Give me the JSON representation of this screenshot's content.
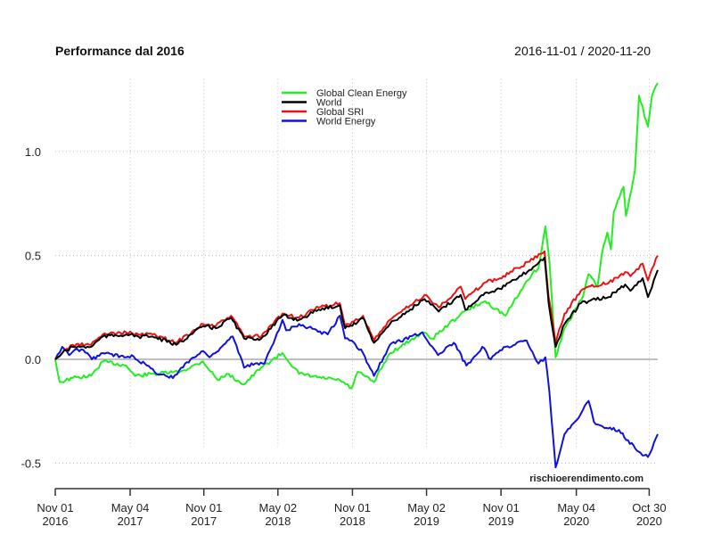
{
  "chart_data": {
    "type": "line",
    "title": "Performance dal 2016",
    "date_range": "2016-11-01 / 2020-11-20",
    "watermark": "rischioerendimento.com",
    "xlim": [
      "2016-11-01",
      "2020-11-20"
    ],
    "ylim": [
      -0.55,
      1.35
    ],
    "grid": true,
    "legend_position": "top-center",
    "y_ticks": [
      {
        "value": -0.5,
        "label": "-0.5"
      },
      {
        "value": 0.0,
        "label": "0.0"
      },
      {
        "value": 0.5,
        "label": "0.5"
      },
      {
        "value": 1.0,
        "label": "1.0"
      }
    ],
    "x_ticks": [
      {
        "date": "2016-11-01",
        "line1": "Nov 01",
        "line2": "2016"
      },
      {
        "date": "2017-05-04",
        "line1": "May 04",
        "line2": "2017"
      },
      {
        "date": "2017-11-01",
        "line1": "Nov 01",
        "line2": "2017"
      },
      {
        "date": "2018-05-02",
        "line1": "May 02",
        "line2": "2018"
      },
      {
        "date": "2018-11-01",
        "line1": "Nov 01",
        "line2": "2018"
      },
      {
        "date": "2019-05-02",
        "line1": "May 02",
        "line2": "2019"
      },
      {
        "date": "2019-11-01",
        "line1": "Nov 01",
        "line2": "2019"
      },
      {
        "date": "2020-05-04",
        "line1": "May 04",
        "line2": "2020"
      },
      {
        "date": "2020-10-30",
        "line1": "Oct 30",
        "line2": "2020"
      }
    ],
    "series": [
      {
        "name": "Global Clean Energy",
        "color": "#22ee22",
        "x": [
          "2016-11-01",
          "2016-11-12",
          "2016-12-14",
          "2017-01-28",
          "2017-02-26",
          "2017-04-24",
          "2017-05-16",
          "2017-06-28",
          "2017-09-04",
          "2017-10-30",
          "2017-12-05",
          "2017-12-27",
          "2018-02-08",
          "2018-03-22",
          "2018-05-13",
          "2018-06-23",
          "2018-08-17",
          "2018-10-01",
          "2018-10-30",
          "2018-11-14",
          "2018-12-24",
          "2019-02-01",
          "2019-03-23",
          "2019-04-22",
          "2019-05-16",
          "2019-06-26",
          "2019-08-03",
          "2019-09-23",
          "2019-11-12",
          "2019-12-19",
          "2020-01-16",
          "2020-02-01",
          "2020-02-18",
          "2020-02-28",
          "2020-03-14",
          "2020-04-05",
          "2020-05-20",
          "2020-06-03",
          "2020-06-25",
          "2020-07-05",
          "2020-07-19",
          "2020-07-28",
          "2020-08-04",
          "2020-08-28",
          "2020-09-03",
          "2020-09-25",
          "2020-10-05",
          "2020-10-27",
          "2020-11-06",
          "2020-11-20"
        ],
        "y": [
          0.0,
          -0.11,
          -0.09,
          -0.08,
          -0.01,
          -0.03,
          -0.08,
          -0.07,
          -0.06,
          -0.01,
          -0.1,
          -0.07,
          -0.12,
          -0.04,
          0.03,
          -0.07,
          -0.09,
          -0.1,
          -0.14,
          -0.06,
          -0.11,
          0.03,
          0.09,
          0.13,
          0.1,
          0.17,
          0.23,
          0.28,
          0.21,
          0.33,
          0.41,
          0.44,
          0.64,
          0.47,
          0.01,
          0.15,
          0.3,
          0.41,
          0.35,
          0.5,
          0.61,
          0.53,
          0.71,
          0.83,
          0.69,
          0.91,
          1.27,
          1.12,
          1.27,
          1.33
        ]
      },
      {
        "name": "World",
        "color": "#000000",
        "x": [
          "2016-11-01",
          "2016-11-18",
          "2016-12-14",
          "2017-01-28",
          "2017-02-26",
          "2017-04-24",
          "2017-05-24",
          "2017-06-28",
          "2017-08-25",
          "2017-10-30",
          "2017-11-30",
          "2018-01-07",
          "2018-02-08",
          "2018-03-22",
          "2018-05-13",
          "2018-06-23",
          "2018-08-10",
          "2018-10-01",
          "2018-10-14",
          "2018-11-14",
          "2018-11-27",
          "2018-12-24",
          "2019-02-01",
          "2019-03-23",
          "2019-04-27",
          "2019-06-01",
          "2019-07-25",
          "2019-08-05",
          "2019-09-23",
          "2019-10-29",
          "2019-12-12",
          "2020-01-10",
          "2020-02-16",
          "2020-02-26",
          "2020-03-14",
          "2020-04-05",
          "2020-05-15",
          "2020-06-03",
          "2020-07-23",
          "2020-09-01",
          "2020-09-14",
          "2020-10-14",
          "2020-10-27",
          "2020-11-20"
        ],
        "y": [
          0.0,
          0.03,
          0.06,
          0.06,
          0.11,
          0.12,
          0.11,
          0.11,
          0.07,
          0.16,
          0.15,
          0.2,
          0.1,
          0.1,
          0.21,
          0.19,
          0.24,
          0.26,
          0.15,
          0.18,
          0.2,
          0.08,
          0.17,
          0.24,
          0.29,
          0.23,
          0.31,
          0.24,
          0.32,
          0.34,
          0.39,
          0.43,
          0.49,
          0.27,
          0.06,
          0.17,
          0.27,
          0.28,
          0.3,
          0.36,
          0.33,
          0.39,
          0.3,
          0.43
        ]
      },
      {
        "name": "Global SRI",
        "color": "#ee1111",
        "x": [
          "2016-11-01",
          "2016-11-18",
          "2016-12-14",
          "2017-01-28",
          "2017-02-26",
          "2017-04-24",
          "2017-05-24",
          "2017-06-28",
          "2017-08-25",
          "2017-10-30",
          "2017-11-30",
          "2018-01-07",
          "2018-02-08",
          "2018-03-22",
          "2018-05-13",
          "2018-06-23",
          "2018-08-10",
          "2018-10-01",
          "2018-10-14",
          "2018-11-14",
          "2018-11-27",
          "2018-12-24",
          "2019-02-01",
          "2019-03-23",
          "2019-04-27",
          "2019-06-01",
          "2019-07-25",
          "2019-08-05",
          "2019-09-23",
          "2019-10-29",
          "2019-12-12",
          "2020-01-10",
          "2020-02-16",
          "2020-02-26",
          "2020-03-14",
          "2020-04-05",
          "2020-05-15",
          "2020-06-03",
          "2020-07-23",
          "2020-09-01",
          "2020-09-14",
          "2020-10-14",
          "2020-10-27",
          "2020-11-20"
        ],
        "y": [
          0.0,
          0.03,
          0.07,
          0.07,
          0.12,
          0.13,
          0.12,
          0.12,
          0.08,
          0.17,
          0.16,
          0.21,
          0.11,
          0.11,
          0.22,
          0.2,
          0.25,
          0.27,
          0.16,
          0.19,
          0.21,
          0.09,
          0.19,
          0.26,
          0.31,
          0.25,
          0.35,
          0.29,
          0.37,
          0.39,
          0.44,
          0.47,
          0.52,
          0.3,
          0.08,
          0.22,
          0.33,
          0.35,
          0.37,
          0.42,
          0.4,
          0.46,
          0.38,
          0.5
        ]
      },
      {
        "name": "World Energy",
        "color": "#1111dd",
        "x": [
          "2016-11-01",
          "2016-11-18",
          "2016-12-05",
          "2016-12-25",
          "2017-01-19",
          "2017-01-30",
          "2017-02-26",
          "2017-04-24",
          "2017-05-08",
          "2017-06-14",
          "2017-07-03",
          "2017-08-17",
          "2017-09-16",
          "2017-10-30",
          "2017-11-15",
          "2018-01-11",
          "2018-02-08",
          "2018-03-07",
          "2018-03-30",
          "2018-05-13",
          "2018-05-22",
          "2018-06-23",
          "2018-09-01",
          "2018-10-01",
          "2018-10-14",
          "2018-10-30",
          "2018-11-27",
          "2018-12-24",
          "2019-02-01",
          "2019-04-22",
          "2019-05-30",
          "2019-07-08",
          "2019-08-08",
          "2019-09-16",
          "2019-10-07",
          "2019-11-12",
          "2020-01-03",
          "2020-02-01",
          "2020-02-18",
          "2020-02-28",
          "2020-03-14",
          "2020-04-05",
          "2020-05-06",
          "2020-06-03",
          "2020-06-16",
          "2020-07-17",
          "2020-08-17",
          "2020-09-30",
          "2020-10-27",
          "2020-11-20"
        ],
        "y": [
          0.0,
          0.06,
          0.02,
          0.05,
          0.03,
          0.0,
          0.03,
          0.01,
          0.02,
          -0.03,
          -0.06,
          -0.09,
          -0.02,
          0.04,
          0.01,
          0.11,
          -0.04,
          -0.02,
          -0.02,
          0.19,
          0.14,
          0.17,
          0.12,
          0.21,
          0.1,
          0.09,
          0.03,
          -0.08,
          0.07,
          0.13,
          0.02,
          0.08,
          -0.03,
          0.06,
          0.0,
          0.06,
          0.09,
          -0.02,
          0.01,
          -0.16,
          -0.52,
          -0.36,
          -0.29,
          -0.2,
          -0.3,
          -0.33,
          -0.34,
          -0.44,
          -0.47,
          -0.36
        ]
      }
    ]
  }
}
